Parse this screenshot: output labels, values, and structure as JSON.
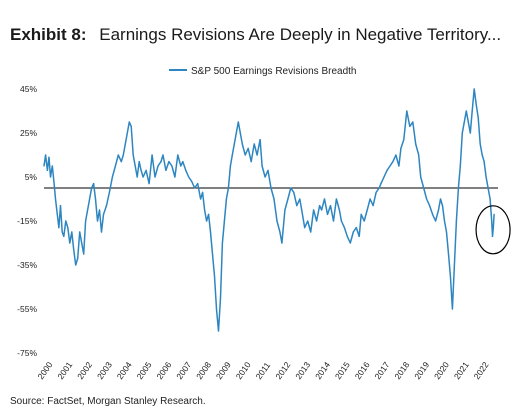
{
  "chart_data": {
    "type": "line",
    "title_bold": "Exhibit 8:",
    "title": "Earnings Revisions Are Deeply in Negative Territory...",
    "source": "Source: FactSet, Morgan Stanley Research.",
    "series": [
      {
        "name": "S&P 500 Earnings Revisions Breadth",
        "color": "#2e86c1",
        "x": [
          2000.0,
          2000.08,
          2000.17,
          2000.25,
          2000.33,
          2000.42,
          2000.5,
          2000.58,
          2000.67,
          2000.75,
          2000.83,
          2000.92,
          2001.0,
          2001.1,
          2001.2,
          2001.3,
          2001.4,
          2001.5,
          2001.6,
          2001.7,
          2001.8,
          2001.9,
          2002.0,
          2002.1,
          2002.2,
          2002.3,
          2002.4,
          2002.5,
          2002.6,
          2002.7,
          2002.8,
          2002.9,
          2003.0,
          2003.15,
          2003.3,
          2003.45,
          2003.6,
          2003.75,
          2003.9,
          2004.0,
          2004.1,
          2004.2,
          2004.3,
          2004.4,
          2004.5,
          2004.6,
          2004.7,
          2004.8,
          2004.9,
          2005.0,
          2005.15,
          2005.3,
          2005.45,
          2005.6,
          2005.75,
          2005.9,
          2006.0,
          2006.15,
          2006.3,
          2006.45,
          2006.6,
          2006.75,
          2006.9,
          2007.0,
          2007.15,
          2007.3,
          2007.45,
          2007.6,
          2007.75,
          2007.9,
          2008.0,
          2008.1,
          2008.2,
          2008.3,
          2008.4,
          2008.5,
          2008.6,
          2008.7,
          2008.8,
          2008.9,
          2009.0,
          2009.1,
          2009.2,
          2009.3,
          2009.4,
          2009.5,
          2009.6,
          2009.7,
          2009.8,
          2009.9,
          2010.0,
          2010.15,
          2010.3,
          2010.45,
          2010.6,
          2010.75,
          2010.9,
          2011.0,
          2011.15,
          2011.3,
          2011.45,
          2011.6,
          2011.75,
          2011.9,
          2012.0,
          2012.15,
          2012.3,
          2012.45,
          2012.6,
          2012.75,
          2012.9,
          2013.0,
          2013.15,
          2013.3,
          2013.45,
          2013.6,
          2013.75,
          2013.9,
          2014.0,
          2014.15,
          2014.3,
          2014.45,
          2014.6,
          2014.75,
          2014.9,
          2015.0,
          2015.15,
          2015.3,
          2015.45,
          2015.6,
          2015.75,
          2015.9,
          2016.0,
          2016.15,
          2016.3,
          2016.45,
          2016.6,
          2016.75,
          2016.9,
          2017.0,
          2017.15,
          2017.3,
          2017.45,
          2017.6,
          2017.75,
          2017.9,
          2018.0,
          2018.15,
          2018.3,
          2018.45,
          2018.6,
          2018.75,
          2018.9,
          2019.0,
          2019.15,
          2019.3,
          2019.45,
          2019.6,
          2019.75,
          2019.9,
          2020.0,
          2020.1,
          2020.2,
          2020.3,
          2020.4,
          2020.5,
          2020.6,
          2020.7,
          2020.8,
          2020.9,
          2021.0,
          2021.1,
          2021.2,
          2021.3,
          2021.4,
          2021.5,
          2021.6,
          2021.7,
          2021.8,
          2021.9,
          2022.0,
          2022.1,
          2022.2,
          2022.3,
          2022.4,
          2022.5,
          2022.58,
          2022.62,
          2022.66,
          2022.7
        ],
        "values": [
          10,
          15,
          8,
          14,
          5,
          10,
          3,
          -5,
          -12,
          -18,
          -8,
          -20,
          -22,
          -15,
          -18,
          -25,
          -20,
          -28,
          -35,
          -32,
          -20,
          -25,
          -30,
          -15,
          -10,
          -5,
          0,
          2,
          -5,
          -15,
          -10,
          -20,
          -12,
          -8,
          -2,
          5,
          10,
          15,
          12,
          15,
          20,
          25,
          30,
          28,
          15,
          10,
          5,
          12,
          8,
          5,
          8,
          2,
          15,
          5,
          10,
          12,
          15,
          8,
          12,
          10,
          5,
          15,
          10,
          12,
          8,
          5,
          3,
          0,
          2,
          -5,
          -2,
          -10,
          -15,
          -12,
          -20,
          -30,
          -40,
          -55,
          -65,
          -50,
          -25,
          -15,
          -5,
          0,
          10,
          15,
          20,
          25,
          30,
          25,
          20,
          15,
          18,
          12,
          20,
          15,
          22,
          10,
          5,
          8,
          0,
          -5,
          -15,
          -20,
          -25,
          -10,
          -5,
          0,
          -2,
          -8,
          -5,
          -10,
          -18,
          -15,
          -20,
          -10,
          -15,
          -8,
          -10,
          -5,
          -12,
          -8,
          -15,
          -5,
          -10,
          -15,
          -18,
          -22,
          -25,
          -20,
          -18,
          -22,
          -12,
          -15,
          -10,
          -5,
          -8,
          -2,
          0,
          2,
          5,
          8,
          10,
          12,
          15,
          10,
          18,
          22,
          35,
          28,
          30,
          20,
          15,
          5,
          0,
          -5,
          -8,
          -12,
          -15,
          -10,
          -5,
          -8,
          -15,
          -20,
          -30,
          -40,
          -55,
          -35,
          -15,
          0,
          10,
          25,
          30,
          35,
          30,
          25,
          35,
          45,
          38,
          32,
          20,
          15,
          12,
          5,
          0,
          -5,
          -15,
          -22,
          -18,
          -12
        ]
      }
    ],
    "xticks": [
      "2000",
      "2001",
      "2002",
      "2003",
      "2004",
      "2005",
      "2006",
      "2007",
      "2008",
      "2009",
      "2010",
      "2011",
      "2012",
      "2013",
      "2014",
      "2015",
      "2016",
      "2017",
      "2018",
      "2019",
      "2020",
      "2021",
      "2022"
    ],
    "yticks": [
      "45%",
      "25%",
      "5%",
      "-15%",
      "-35%",
      "-55%",
      "-75%"
    ],
    "xlim": [
      2000,
      2023
    ],
    "ylim": [
      -75,
      45
    ],
    "zero_line_value": 0,
    "grid": false,
    "legend_position": "top-center",
    "highlight": {
      "shape": "ellipse",
      "x": 2022.65,
      "y": -19
    }
  }
}
